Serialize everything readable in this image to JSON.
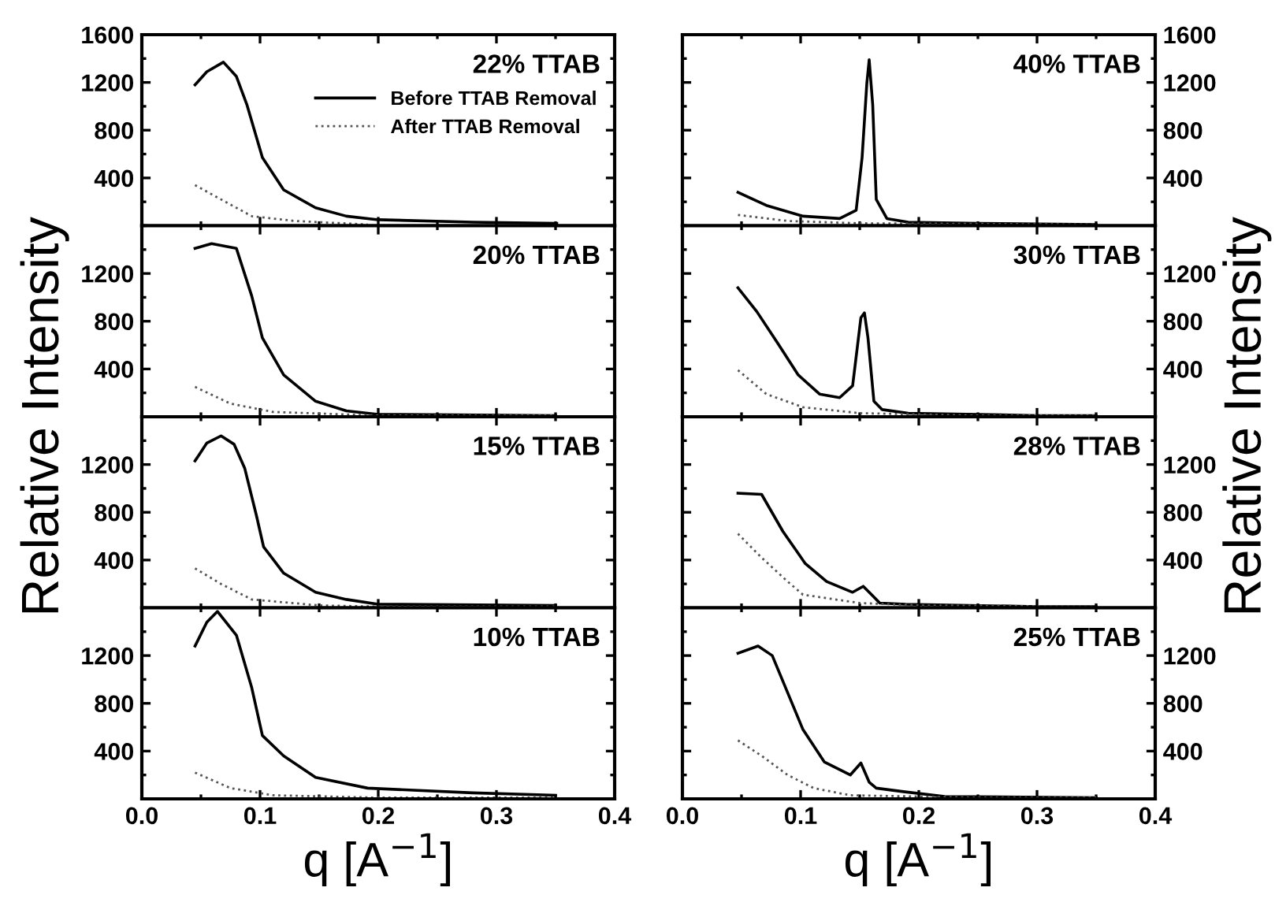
{
  "chart_data": [
    {
      "type": "line",
      "title": "22% TTAB",
      "ylabel": "Relative Intensity",
      "xlim": [
        0.0,
        0.4
      ],
      "xticks": [
        0.0,
        0.1,
        0.2,
        0.3,
        0.4
      ],
      "ylim": [
        0,
        1600
      ],
      "yticks": [
        400,
        800,
        1200,
        1600
      ],
      "tick_labels": "y",
      "legend": "top right",
      "grid": false,
      "series": [
        {
          "name": "Before TTAB Removal",
          "color": "#000000",
          "line_style": "solid",
          "x": [
            0.045,
            0.055,
            0.069,
            0.08,
            0.089,
            0.102,
            0.12,
            0.147,
            0.173,
            0.2,
            0.28,
            0.351
          ],
          "values": [
            1180,
            1290,
            1370,
            1250,
            1010,
            570,
            300,
            150,
            80,
            50,
            30,
            20
          ]
        },
        {
          "name": "After TTAB Removal",
          "color": "#555555",
          "line_style": "dotted",
          "x": [
            0.045,
            0.067,
            0.093,
            0.129,
            0.191
          ],
          "values": [
            340,
            220,
            80,
            40,
            10
          ]
        }
      ]
    },
    {
      "type": "line",
      "title": "40% TTAB",
      "ylabel": "Relative Intensity",
      "xlim": [
        0.0,
        0.4
      ],
      "xticks": [
        0.0,
        0.1,
        0.2,
        0.3,
        0.4
      ],
      "ylim": [
        0,
        1600
      ],
      "yticks": [
        400,
        800,
        1200,
        1600
      ],
      "tick_labels": "y",
      "grid": false,
      "series": [
        {
          "color": "#000000",
          "line_style": "solid",
          "x": [
            0.047,
            0.071,
            0.102,
            0.133,
            0.147,
            0.152,
            0.156,
            0.158,
            0.161,
            0.164,
            0.173,
            0.191,
            0.25,
            0.35
          ],
          "values": [
            280,
            170,
            80,
            60,
            130,
            570,
            1190,
            1390,
            1010,
            220,
            60,
            30,
            20,
            10
          ]
        },
        {
          "color": "#555555",
          "line_style": "dotted",
          "x": [
            0.047,
            0.089,
            0.15,
            0.35
          ],
          "values": [
            90,
            40,
            20,
            10
          ]
        }
      ]
    },
    {
      "type": "line",
      "title": "20% TTAB",
      "xlim": [
        0.0,
        0.4
      ],
      "xticks": [
        0.0,
        0.1,
        0.2,
        0.3,
        0.4
      ],
      "ylim": [
        0,
        1600
      ],
      "yticks": [
        400,
        800,
        1200
      ],
      "tick_labels": "y",
      "grid": false,
      "series": [
        {
          "color": "#000000",
          "line_style": "solid",
          "x": [
            0.045,
            0.059,
            0.08,
            0.093,
            0.102,
            0.12,
            0.147,
            0.173,
            0.2,
            0.35
          ],
          "values": [
            1410,
            1450,
            1410,
            1010,
            660,
            350,
            130,
            50,
            20,
            10
          ]
        },
        {
          "color": "#555555",
          "line_style": "dotted",
          "x": [
            0.045,
            0.075,
            0.111,
            0.2,
            0.35
          ],
          "values": [
            250,
            110,
            40,
            10,
            10
          ]
        }
      ]
    },
    {
      "type": "line",
      "title": "30% TTAB",
      "xlim": [
        0.0,
        0.4
      ],
      "xticks": [
        0.0,
        0.1,
        0.2,
        0.3,
        0.4
      ],
      "ylim": [
        0,
        1600
      ],
      "yticks": [
        400,
        800,
        1200
      ],
      "tick_labels": "y",
      "grid": false,
      "series": [
        {
          "color": "#000000",
          "line_style": "solid",
          "x": [
            0.047,
            0.063,
            0.081,
            0.098,
            0.116,
            0.133,
            0.144,
            0.151,
            0.154,
            0.157,
            0.162,
            0.169,
            0.191,
            0.3,
            0.35
          ],
          "values": [
            1080,
            880,
            610,
            350,
            190,
            160,
            260,
            830,
            870,
            660,
            130,
            60,
            30,
            10,
            10
          ]
        },
        {
          "color": "#555555",
          "line_style": "dotted",
          "x": [
            0.047,
            0.071,
            0.102,
            0.15,
            0.25,
            0.35
          ],
          "values": [
            390,
            190,
            80,
            30,
            10,
            10
          ]
        }
      ]
    },
    {
      "type": "line",
      "title": "15% TTAB",
      "xlim": [
        0.0,
        0.4
      ],
      "xticks": [
        0.0,
        0.1,
        0.2,
        0.3,
        0.4
      ],
      "ylim": [
        0,
        1600
      ],
      "yticks": [
        400,
        800,
        1200
      ],
      "tick_labels": "y",
      "grid": false,
      "series": [
        {
          "color": "#000000",
          "line_style": "solid",
          "x": [
            0.045,
            0.055,
            0.067,
            0.078,
            0.087,
            0.097,
            0.103,
            0.12,
            0.147,
            0.173,
            0.2,
            0.35
          ],
          "values": [
            1230,
            1380,
            1440,
            1370,
            1170,
            770,
            510,
            290,
            130,
            70,
            30,
            20
          ]
        },
        {
          "color": "#555555",
          "line_style": "dotted",
          "x": [
            0.045,
            0.067,
            0.093,
            0.15,
            0.2,
            0.35
          ],
          "values": [
            330,
            200,
            70,
            20,
            10,
            10
          ]
        }
      ]
    },
    {
      "type": "line",
      "title": "28% TTAB",
      "xlim": [
        0.0,
        0.4
      ],
      "xticks": [
        0.0,
        0.1,
        0.2,
        0.3,
        0.4
      ],
      "ylim": [
        0,
        1600
      ],
      "yticks": [
        400,
        800,
        1200
      ],
      "tick_labels": "y",
      "grid": false,
      "series": [
        {
          "color": "#000000",
          "line_style": "solid",
          "x": [
            0.047,
            0.067,
            0.085,
            0.104,
            0.122,
            0.144,
            0.153,
            0.16,
            0.167,
            0.189,
            0.3,
            0.35
          ],
          "values": [
            960,
            950,
            640,
            370,
            220,
            130,
            180,
            110,
            40,
            30,
            10,
            10
          ]
        },
        {
          "color": "#555555",
          "line_style": "dotted",
          "x": [
            0.047,
            0.067,
            0.089,
            0.102,
            0.15,
            0.2,
            0.35
          ],
          "values": [
            620,
            420,
            220,
            110,
            40,
            20,
            10
          ]
        }
      ]
    },
    {
      "type": "line",
      "title": "10% TTAB",
      "xlabel": "q [A$^{−1}$]",
      "xlim": [
        0.0,
        0.4
      ],
      "xticks": [
        {
          "value": 0.0,
          "label": "0.0"
        },
        {
          "value": 0.1,
          "label": "0.1"
        },
        {
          "value": 0.2,
          "label": "0.2"
        },
        {
          "value": 0.3,
          "label": "0.3"
        },
        {
          "value": 0.4,
          "label": "0.4"
        }
      ],
      "ylim": [
        0,
        1600
      ],
      "yticks": [
        400,
        800,
        1200
      ],
      "grid": false,
      "series": [
        {
          "color": "#000000",
          "line_style": "solid",
          "x": [
            0.045,
            0.055,
            0.064,
            0.08,
            0.093,
            0.102,
            0.12,
            0.147,
            0.191,
            0.28,
            0.35
          ],
          "values": [
            1280,
            1480,
            1570,
            1370,
            930,
            530,
            360,
            180,
            90,
            50,
            30
          ]
        },
        {
          "color": "#555555",
          "line_style": "dotted",
          "x": [
            0.045,
            0.075,
            0.111,
            0.2,
            0.35
          ],
          "values": [
            220,
            90,
            30,
            10,
            10
          ]
        }
      ]
    },
    {
      "type": "line",
      "title": "25% TTAB",
      "xlabel": "q [A$^{−1}$]",
      "xlim": [
        0.0,
        0.4
      ],
      "xticks": [
        {
          "value": 0.0,
          "label": "0.0"
        },
        {
          "value": 0.1,
          "label": "0.1"
        },
        {
          "value": 0.2,
          "label": "0.2"
        },
        {
          "value": 0.3,
          "label": "0.3"
        },
        {
          "value": 0.4,
          "label": "0.4"
        }
      ],
      "ylim": [
        0,
        1600
      ],
      "yticks": [
        400,
        800,
        1200
      ],
      "grid": false,
      "series": [
        {
          "color": "#000000",
          "line_style": "solid",
          "x": [
            0.047,
            0.064,
            0.076,
            0.089,
            0.102,
            0.12,
            0.142,
            0.151,
            0.158,
            0.164,
            0.187,
            0.222,
            0.35
          ],
          "values": [
            1220,
            1280,
            1200,
            890,
            580,
            310,
            200,
            300,
            140,
            90,
            60,
            20,
            10
          ]
        },
        {
          "color": "#555555",
          "line_style": "dotted",
          "x": [
            0.047,
            0.067,
            0.089,
            0.111,
            0.142,
            0.25,
            0.35
          ],
          "values": [
            490,
            360,
            200,
            90,
            30,
            10,
            10
          ]
        }
      ]
    }
  ]
}
